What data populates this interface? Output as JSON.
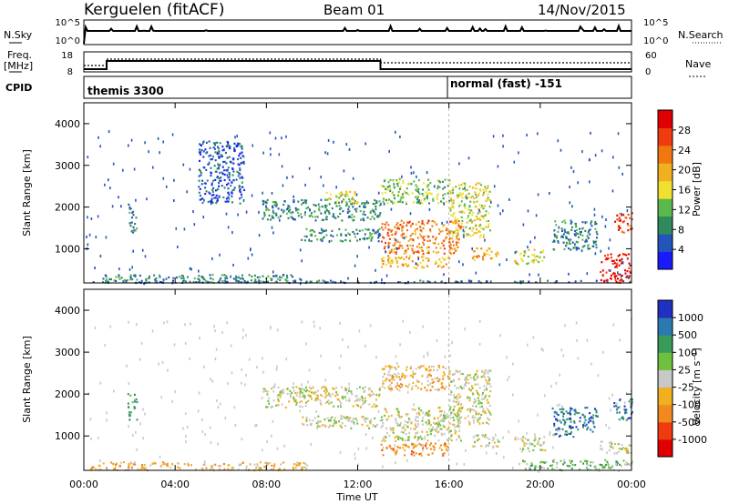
{
  "header": {
    "site": "Kerguelen (fitACF)",
    "beam": "Beam 01",
    "date": "14/Nov/2015"
  },
  "noise_panel": {
    "left_label": "N.Sky",
    "right_label": "N.Search",
    "yticks_left": [
      "10^5",
      "10^0"
    ],
    "yticks_right": [
      "10^5",
      "10^0"
    ]
  },
  "freq_panel": {
    "left_label": "Freq.",
    "left_unit": "[MHz]",
    "right_label": "Nave",
    "yticks_left": [
      "18",
      "8"
    ],
    "yticks_right": [
      "60",
      "0"
    ]
  },
  "cpid_panel": {
    "label": "CPID",
    "segments": [
      "themis 3300",
      "normal (fast) -151"
    ]
  },
  "colors": {
    "power": [
      "#1a1aff",
      "#2255bb",
      "#2f8a5c",
      "#59b94a",
      "#f0e030",
      "#f0b020",
      "#f07810",
      "#f03a10",
      "#e00000"
    ],
    "velocity": [
      "#e00000",
      "#f03a10",
      "#f08a20",
      "#f0b020",
      "#c8c8c8",
      "#70c040",
      "#3a9a5a",
      "#2a7ab0",
      "#2030c0"
    ]
  },
  "chart_data": [
    {
      "type": "heatmap",
      "name": "power",
      "ylabel": "Slant Range [km]",
      "xlabel": "Time UT",
      "xticks": [
        "00:00",
        "04:00",
        "08:00",
        "12:00",
        "16:00",
        "20:00",
        "00:00"
      ],
      "yticks": [
        1000,
        2000,
        3000,
        4000
      ],
      "ylim": [
        180,
        4500
      ],
      "colorbar_label": "Power [dB]",
      "colorbar_ticks": [
        4,
        8,
        12,
        16,
        20,
        24,
        28
      ],
      "colorbar_range": [
        0,
        32
      ],
      "echo_regions": [
        {
          "t0": 0.2,
          "t1": 24,
          "r0": 200,
          "r1": 260,
          "level": 1
        },
        {
          "t0": 0.8,
          "t1": 9.8,
          "r0": 200,
          "r1": 400,
          "level": 2
        },
        {
          "t0": 1.9,
          "t1": 2.3,
          "r0": 1400,
          "r1": 2100,
          "level": 2
        },
        {
          "t0": 5.0,
          "t1": 7.0,
          "r0": 2100,
          "r1": 3600,
          "level": 1
        },
        {
          "t0": 7.8,
          "t1": 13.0,
          "r0": 1700,
          "r1": 2200,
          "level": 2
        },
        {
          "t0": 9.5,
          "t1": 13.0,
          "r0": 1200,
          "r1": 1500,
          "level": 2
        },
        {
          "t0": 10.5,
          "t1": 12.0,
          "r0": 2100,
          "r1": 2400,
          "level": 4
        },
        {
          "t0": 13.0,
          "t1": 16.5,
          "r0": 900,
          "r1": 1700,
          "level": 6
        },
        {
          "t0": 13.0,
          "t1": 16.0,
          "r0": 2100,
          "r1": 2700,
          "level": 3
        },
        {
          "t0": 13.0,
          "t1": 16.0,
          "r0": 550,
          "r1": 850,
          "level": 5
        },
        {
          "t0": 16.0,
          "t1": 17.8,
          "r0": 1300,
          "r1": 2600,
          "level": 4
        },
        {
          "t0": 17.0,
          "t1": 18.2,
          "r0": 750,
          "r1": 1050,
          "level": 5
        },
        {
          "t0": 18.8,
          "t1": 20.2,
          "r0": 650,
          "r1": 1000,
          "level": 4
        },
        {
          "t0": 20.5,
          "t1": 22.5,
          "r0": 1000,
          "r1": 1700,
          "level": 2
        },
        {
          "t0": 22.6,
          "t1": 24.0,
          "r0": 200,
          "r1": 900,
          "level": 8
        },
        {
          "t0": 23.2,
          "t1": 24.0,
          "r0": 1400,
          "r1": 1900,
          "level": 7
        }
      ]
    },
    {
      "type": "heatmap",
      "name": "velocity",
      "ylabel": "Slant Range [km]",
      "xlabel": "Time UT",
      "xticks": [
        "00:00",
        "04:00",
        "08:00",
        "12:00",
        "16:00",
        "20:00",
        "00:00"
      ],
      "yticks": [
        1000,
        2000,
        3000,
        4000
      ],
      "ylim": [
        180,
        4500
      ],
      "colorbar_label": "Velocity [m s⁻¹]",
      "colorbar_ticks": [
        1000,
        500,
        100,
        25,
        -25,
        -100,
        -500,
        -1000
      ],
      "echo_regions": [
        {
          "t0": 0.2,
          "t1": 9.8,
          "r0": 200,
          "r1": 400,
          "level": 3
        },
        {
          "t0": 1.9,
          "t1": 2.3,
          "r0": 1400,
          "r1": 2100,
          "level": 6
        },
        {
          "t0": 7.8,
          "t1": 13.0,
          "r0": 1700,
          "r1": 2200,
          "level": 4
        },
        {
          "t0": 9.5,
          "t1": 13.0,
          "r0": 1200,
          "r1": 1500,
          "level": 4
        },
        {
          "t0": 13.0,
          "t1": 16.5,
          "r0": 900,
          "r1": 1700,
          "level": 4
        },
        {
          "t0": 13.0,
          "t1": 16.0,
          "r0": 2100,
          "r1": 2700,
          "level": 3
        },
        {
          "t0": 13.0,
          "t1": 16.0,
          "r0": 550,
          "r1": 850,
          "level": 2
        },
        {
          "t0": 16.0,
          "t1": 17.8,
          "r0": 1300,
          "r1": 2600,
          "level": 4
        },
        {
          "t0": 17.0,
          "t1": 18.2,
          "r0": 750,
          "r1": 1050,
          "level": 4
        },
        {
          "t0": 18.8,
          "t1": 20.2,
          "r0": 650,
          "r1": 1000,
          "level": 4
        },
        {
          "t0": 19.0,
          "t1": 24.0,
          "r0": 200,
          "r1": 450,
          "level": 5
        },
        {
          "t0": 20.5,
          "t1": 22.5,
          "r0": 1000,
          "r1": 1700,
          "level": 7
        },
        {
          "t0": 22.6,
          "t1": 24.0,
          "r0": 600,
          "r1": 900,
          "level": 4
        },
        {
          "t0": 23.2,
          "t1": 24.0,
          "r0": 1400,
          "r1": 1900,
          "level": 7
        }
      ]
    }
  ]
}
